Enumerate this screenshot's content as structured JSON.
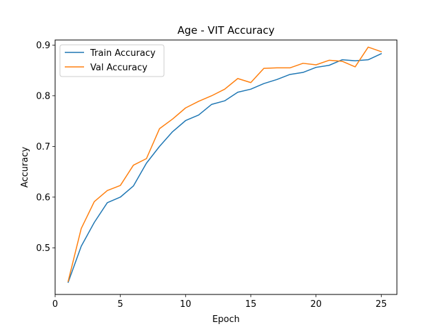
{
  "chart_data": {
    "type": "line",
    "title": "Age - VIT Accuracy",
    "xlabel": "Epoch",
    "ylabel": "Accuracy",
    "xlim": [
      0,
      26.2
    ],
    "ylim": [
      0.408,
      0.91
    ],
    "xticks": [
      0,
      5,
      10,
      15,
      20,
      25
    ],
    "yticks": [
      0.5,
      0.6,
      0.7,
      0.8,
      0.9
    ],
    "xtick_labels": [
      "0",
      "5",
      "10",
      "15",
      "20",
      "25"
    ],
    "ytick_labels": [
      "0.5",
      "0.6",
      "0.7",
      "0.8",
      "0.9"
    ],
    "grid": false,
    "legend_position": "top-left",
    "x": [
      1,
      2,
      3,
      4,
      5,
      6,
      7,
      8,
      9,
      10,
      11,
      12,
      13,
      14,
      15,
      16,
      17,
      18,
      19,
      20,
      21,
      22,
      23,
      24,
      25
    ],
    "series": [
      {
        "name": "Train Accuracy",
        "color": "#1f77b4",
        "values": [
          0.432,
          0.503,
          0.55,
          0.589,
          0.6,
          0.622,
          0.667,
          0.7,
          0.729,
          0.751,
          0.762,
          0.783,
          0.79,
          0.807,
          0.813,
          0.824,
          0.832,
          0.842,
          0.846,
          0.856,
          0.86,
          0.871,
          0.869,
          0.871,
          0.883
        ]
      },
      {
        "name": "Val Accuracy",
        "color": "#ff7f0e",
        "values": [
          0.434,
          0.538,
          0.591,
          0.613,
          0.623,
          0.663,
          0.676,
          0.735,
          0.754,
          0.776,
          0.789,
          0.8,
          0.813,
          0.834,
          0.826,
          0.854,
          0.855,
          0.855,
          0.864,
          0.861,
          0.87,
          0.868,
          0.857,
          0.896,
          0.887
        ]
      }
    ]
  }
}
